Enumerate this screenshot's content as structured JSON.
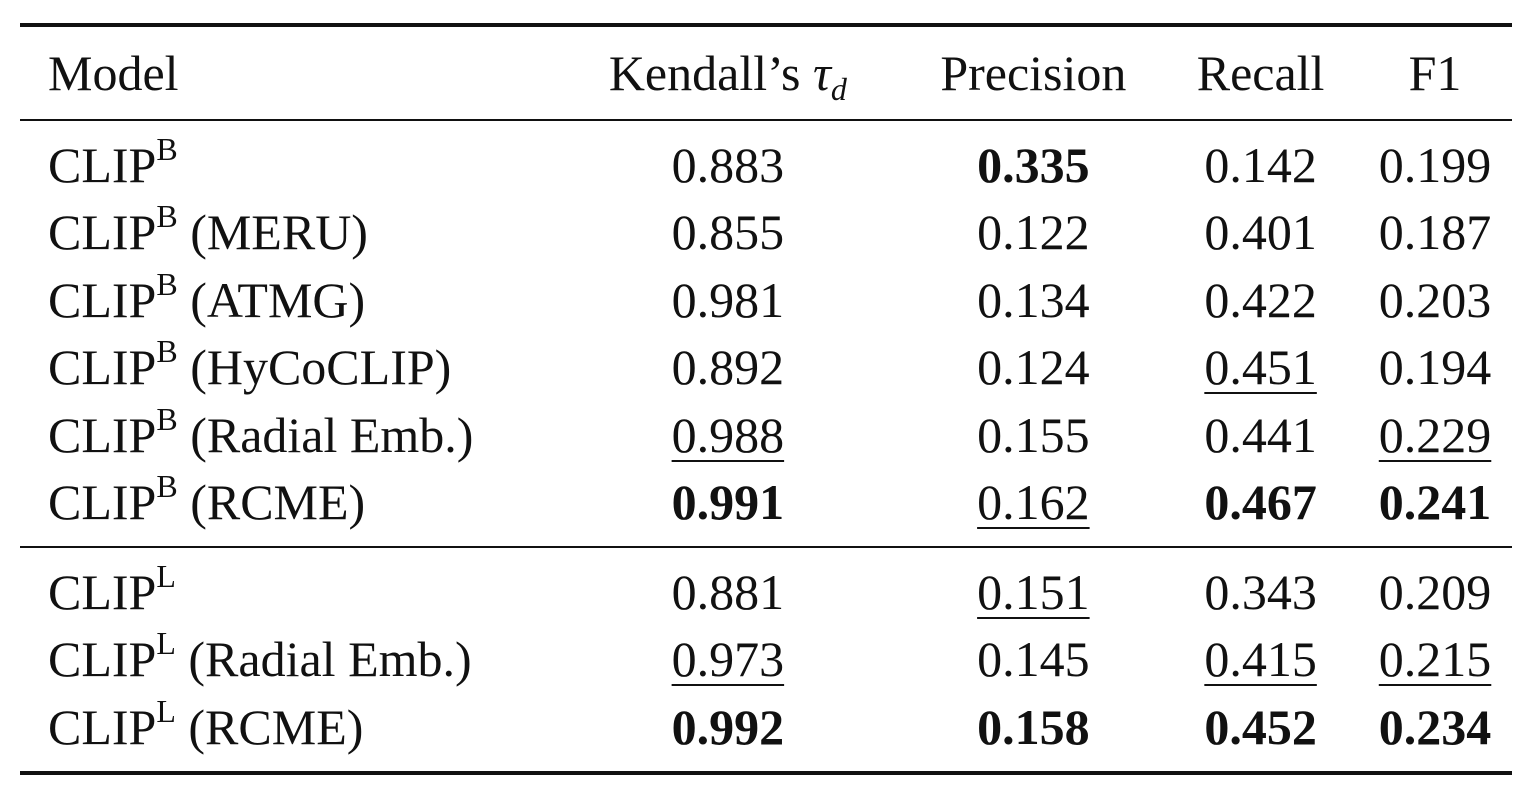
{
  "header": {
    "model": "Model",
    "kendall_prefix": "Kendall’s ",
    "kendall_symbol": "τ",
    "kendall_sub": "d",
    "precision": "Precision",
    "recall": "Recall",
    "f1": "F1"
  },
  "groups": [
    {
      "base": "CLIP",
      "sup": "B",
      "rows": [
        {
          "variant": "",
          "k": "0.883",
          "k_style": "normal",
          "p": "0.335",
          "p_style": "bold",
          "r": "0.142",
          "r_style": "normal",
          "f": "0.199",
          "f_style": "normal"
        },
        {
          "variant": " (MERU)",
          "k": "0.855",
          "k_style": "normal",
          "p": "0.122",
          "p_style": "normal",
          "r": "0.401",
          "r_style": "normal",
          "f": "0.187",
          "f_style": "normal"
        },
        {
          "variant": " (ATMG)",
          "k": "0.981",
          "k_style": "normal",
          "p": "0.134",
          "p_style": "normal",
          "r": "0.422",
          "r_style": "normal",
          "f": "0.203",
          "f_style": "normal"
        },
        {
          "variant": " (HyCoCLIP)",
          "k": "0.892",
          "k_style": "normal",
          "p": "0.124",
          "p_style": "normal",
          "r": "0.451",
          "r_style": "underline",
          "f": "0.194",
          "f_style": "normal"
        },
        {
          "variant": " (Radial Emb.)",
          "k": "0.988",
          "k_style": "underline",
          "p": "0.155",
          "p_style": "normal",
          "r": "0.441",
          "r_style": "normal",
          "f": "0.229",
          "f_style": "underline"
        },
        {
          "variant": " (RCME)",
          "k": "0.991",
          "k_style": "bold",
          "p": "0.162",
          "p_style": "underline",
          "r": "0.467",
          "r_style": "bold",
          "f": "0.241",
          "f_style": "bold"
        }
      ]
    },
    {
      "base": "CLIP",
      "sup": "L",
      "rows": [
        {
          "variant": "",
          "k": "0.881",
          "k_style": "normal",
          "p": "0.151",
          "p_style": "underline",
          "r": "0.343",
          "r_style": "normal",
          "f": "0.209",
          "f_style": "normal"
        },
        {
          "variant": " (Radial Emb.)",
          "k": "0.973",
          "k_style": "underline",
          "p": "0.145",
          "p_style": "normal",
          "r": "0.415",
          "r_style": "underline",
          "f": "0.215",
          "f_style": "underline"
        },
        {
          "variant": " (RCME)",
          "k": "0.992",
          "k_style": "bold",
          "p": "0.158",
          "p_style": "bold",
          "r": "0.452",
          "r_style": "bold",
          "f": "0.234",
          "f_style": "bold"
        }
      ]
    }
  ]
}
